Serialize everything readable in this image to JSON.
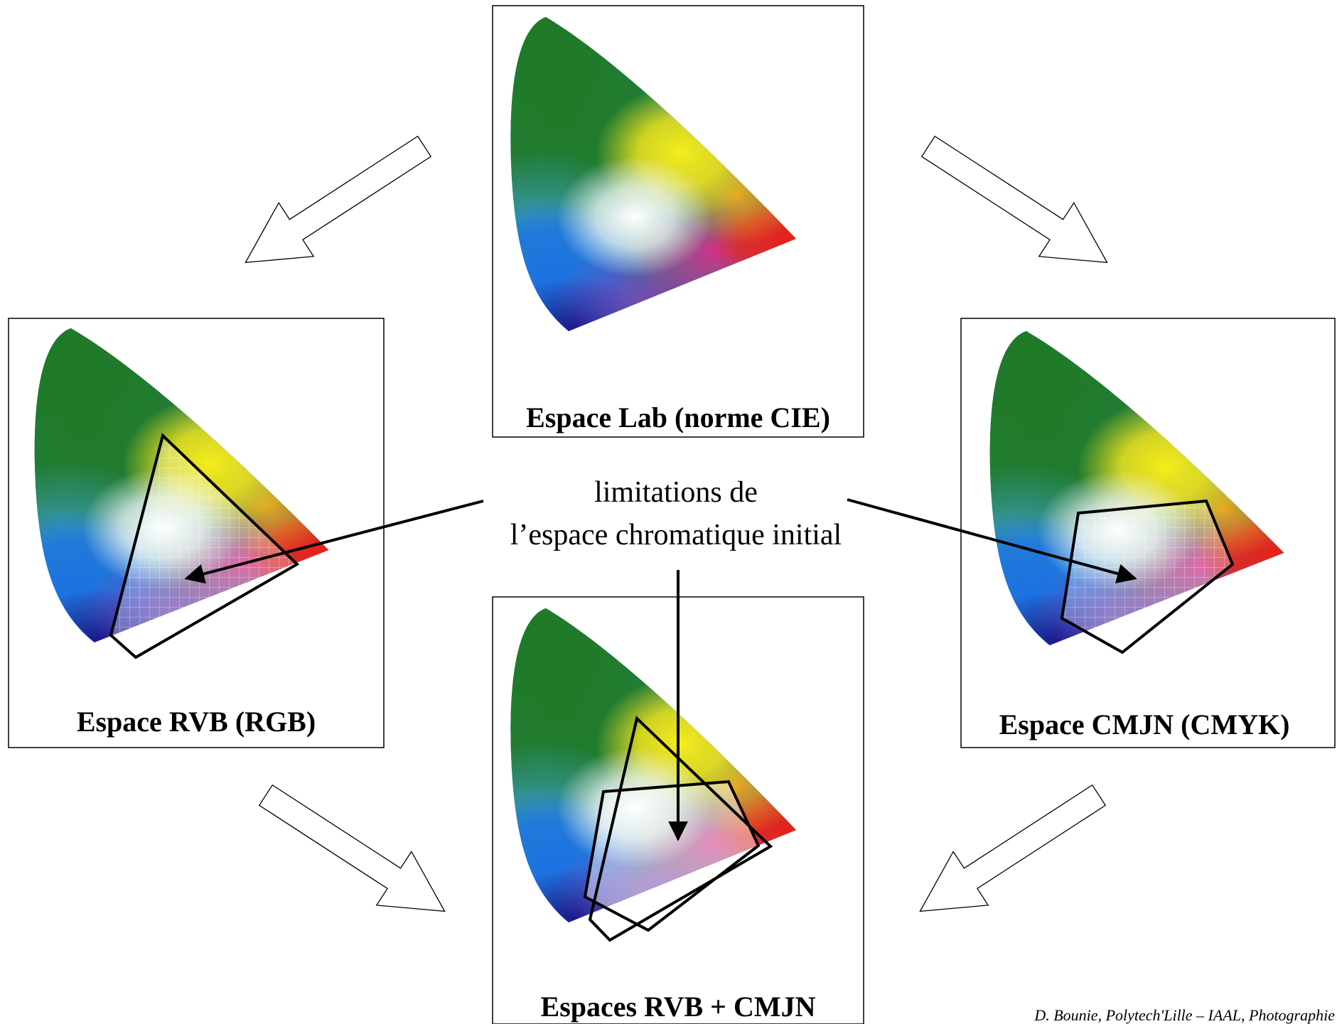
{
  "panels": {
    "lab": {
      "caption": "Espace Lab (norme CIE)"
    },
    "rvb": {
      "caption": "Espace RVB (RGB)"
    },
    "cmjn": {
      "caption": "Espace CMJN (CMYK)"
    },
    "combined": {
      "caption": "Espaces RVB + CMJN"
    }
  },
  "center": {
    "line1": "limitations de",
    "line2": "l’espace chromatique initial"
  },
  "credit": "D. Bounie, Polytech'Lille – IAAL, Photographie",
  "colors": {
    "green": "#1f7a28",
    "yellow": "#f2e21c",
    "red": "#e8241c",
    "magenta": "#d8288c",
    "blue": "#1c6fe0",
    "navy": "#1c1c8c",
    "cyan": "#3a9ac0",
    "outline": "#000000"
  }
}
